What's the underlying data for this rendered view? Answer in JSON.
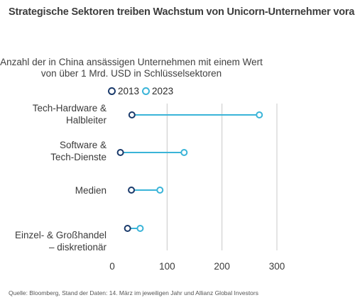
{
  "header": {
    "title": "Strategische Sektoren treiben Wachstum von Unicorn-Unternehmer voran",
    "subtitle_lines": [
      "Anzahl der in China ansässigen Unternehmen mit einem Wert",
      "von über 1 Mrd. USD in Schlüsselsektoren"
    ]
  },
  "legend": [
    {
      "label": "2013",
      "color": "#1a3a6b"
    },
    {
      "label": "2023",
      "color": "#3ab4d8"
    }
  ],
  "chart_data": {
    "type": "dumbbell",
    "categories": [
      [
        "Tech-Hardware &",
        "Halbleiter"
      ],
      [
        "Software &",
        "Tech-Dienste"
      ],
      [
        "Medien"
      ],
      [
        "Einzel- & Großhandel",
        "– diskretionär"
      ]
    ],
    "series": [
      {
        "name": "2013",
        "values": [
          36,
          15,
          35,
          28
        ]
      },
      {
        "name": "2023",
        "values": [
          268,
          131,
          87,
          51
        ]
      }
    ],
    "xlim": [
      0,
      300
    ],
    "xticks": [
      "0",
      "100",
      "200",
      "300"
    ],
    "grid": true,
    "legend_position": "top"
  },
  "footer": {
    "source": "Quelle: Bloomberg, Stand der Daten: 14. März im jeweiligen Jahr und Allianz Global Investors"
  },
  "colors": {
    "color_2013": "#1a3a6b",
    "color_2023": "#3ab4d8",
    "grid": "#c8c8c8"
  }
}
